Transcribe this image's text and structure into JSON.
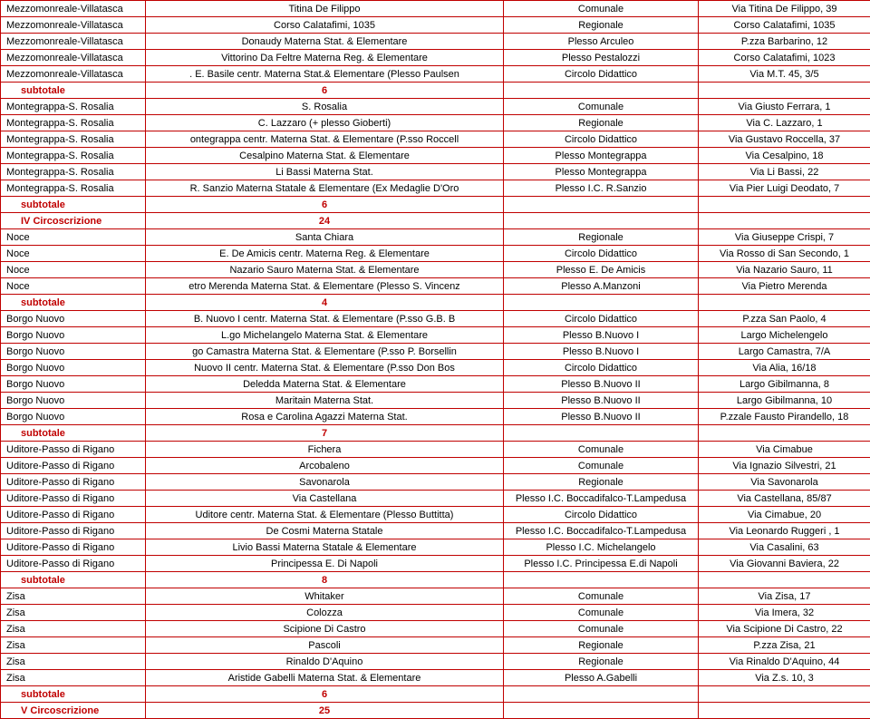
{
  "rows": [
    {
      "type": "data",
      "c1": "Mezzomonreale-Villatasca",
      "c2": "Titina De Filippo",
      "c3": "Comunale",
      "c4": "Via Titina De Filippo, 39"
    },
    {
      "type": "data",
      "c1": "Mezzomonreale-Villatasca",
      "c2": "Corso Calatafimi, 1035",
      "c3": "Regionale",
      "c4": "Corso Calatafimi, 1035"
    },
    {
      "type": "data",
      "c1": "Mezzomonreale-Villatasca",
      "c2": "Donaudy Materna Stat. & Elementare",
      "c3": "Plesso Arculeo",
      "c4": "P.zza Barbarino, 12"
    },
    {
      "type": "data",
      "c1": "Mezzomonreale-Villatasca",
      "c2": "Vittorino Da Feltre Materna Reg. & Elementare",
      "c3": "Plesso Pestalozzi",
      "c4": "Corso Calatafimi, 1023"
    },
    {
      "type": "data",
      "c1": "Mezzomonreale-Villatasca",
      "c2": ". E. Basile centr. Materna Stat.& Elementare (Plesso Paulsen",
      "c3": "Circolo Didattico",
      "c4": "Via M.T. 45, 3/5"
    },
    {
      "type": "sub",
      "c1": "subtotale",
      "c2": "6"
    },
    {
      "type": "data",
      "c1": "Montegrappa-S. Rosalia",
      "c2": "S. Rosalia",
      "c3": "Comunale",
      "c4": "Via Giusto Ferrara, 1"
    },
    {
      "type": "data",
      "c1": "Montegrappa-S. Rosalia",
      "c2": "C. Lazzaro (+ plesso Gioberti)",
      "c3": "Regionale",
      "c4": "Via C. Lazzaro, 1"
    },
    {
      "type": "data",
      "c1": "Montegrappa-S. Rosalia",
      "c2": "ontegrappa centr. Materna Stat. & Elementare (P.sso Roccell",
      "c3": "Circolo Didattico",
      "c4": "Via Gustavo Roccella, 37"
    },
    {
      "type": "data",
      "c1": "Montegrappa-S. Rosalia",
      "c2": "Cesalpino Materna Stat. & Elementare",
      "c3": "Plesso Montegrappa",
      "c4": "Via Cesalpino, 18"
    },
    {
      "type": "data",
      "c1": "Montegrappa-S. Rosalia",
      "c2": "Li Bassi Materna Stat.",
      "c3": "Plesso Montegrappa",
      "c4": "Via Li Bassi, 22"
    },
    {
      "type": "data",
      "c1": "Montegrappa-S. Rosalia",
      "c2": "R. Sanzio Materna Statale & Elementare (Ex Medaglie D'Oro",
      "c3": "Plesso I.C. R.Sanzio",
      "c4": "Via Pier Luigi Deodato, 7"
    },
    {
      "type": "sub",
      "c1": "subtotale",
      "c2": "6"
    },
    {
      "type": "sub",
      "c1": "IV Circoscrizione",
      "c2": "24"
    },
    {
      "type": "data",
      "c1": "Noce",
      "c2": "Santa Chiara",
      "c3": "Regionale",
      "c4": "Via Giuseppe Crispi, 7"
    },
    {
      "type": "data",
      "c1": "Noce",
      "c2": "E. De Amicis centr. Materna Reg. & Elementare",
      "c3": "Circolo Didattico",
      "c4": "Via Rosso di San Secondo, 1"
    },
    {
      "type": "data",
      "c1": "Noce",
      "c2": "Nazario Sauro Materna Stat. & Elementare",
      "c3": "Plesso E. De Amicis",
      "c4": "Via Nazario Sauro, 11"
    },
    {
      "type": "data",
      "c1": "Noce",
      "c2": "etro Merenda Materna Stat. & Elementare (Plesso S. Vincenz",
      "c3": "Plesso A.Manzoni",
      "c4": "Via Pietro Merenda"
    },
    {
      "type": "sub",
      "c1": "subtotale",
      "c2": "4"
    },
    {
      "type": "data",
      "c1": "Borgo Nuovo",
      "c2": "B. Nuovo I centr. Materna Stat. & Elementare (P.sso G.B. B",
      "c3": "Circolo Didattico",
      "c4": "P.zza San Paolo, 4"
    },
    {
      "type": "data",
      "c1": "Borgo Nuovo",
      "c2": "L.go Michelangelo Materna Stat. & Elementare",
      "c3": "Plesso B.Nuovo I",
      "c4": "Largo Michelengelo"
    },
    {
      "type": "data",
      "c1": "Borgo Nuovo",
      "c2": "go Camastra Materna Stat. & Elementare (P.sso P. Borsellin",
      "c3": "Plesso B.Nuovo I",
      "c4": "Largo Camastra, 7/A"
    },
    {
      "type": "data",
      "c1": "Borgo Nuovo",
      "c2": "Nuovo II centr. Materna Stat. & Elementare (P.sso Don Bos",
      "c3": "Circolo Didattico",
      "c4": "Via Alia, 16/18"
    },
    {
      "type": "data",
      "c1": "Borgo Nuovo",
      "c2": "Deledda Materna Stat. & Elementare",
      "c3": "Plesso B.Nuovo II",
      "c4": "Largo Gibilmanna, 8"
    },
    {
      "type": "data",
      "c1": "Borgo Nuovo",
      "c2": "Maritain Materna Stat.",
      "c3": "Plesso B.Nuovo II",
      "c4": "Largo Gibilmanna, 10"
    },
    {
      "type": "data",
      "c1": "Borgo Nuovo",
      "c2": "Rosa e Carolina Agazzi Materna Stat.",
      "c3": "Plesso B.Nuovo II",
      "c4": "P.zzale Fausto Pirandello, 18"
    },
    {
      "type": "sub",
      "c1": "subtotale",
      "c2": "7"
    },
    {
      "type": "data",
      "c1": "Uditore-Passo di Rigano",
      "c2": "Fichera",
      "c3": "Comunale",
      "c4": "Via Cimabue"
    },
    {
      "type": "data",
      "c1": "Uditore-Passo di Rigano",
      "c2": "Arcobaleno",
      "c3": "Comunale",
      "c4": "Via Ignazio Silvestri, 21"
    },
    {
      "type": "data",
      "c1": "Uditore-Passo di Rigano",
      "c2": "Savonarola",
      "c3": "Regionale",
      "c4": "Via Savonarola"
    },
    {
      "type": "data",
      "c1": "Uditore-Passo di Rigano",
      "c2": "Via Castellana",
      "c3": "Plesso I.C. Boccadifalco-T.Lampedusa",
      "c4": "Via Castellana, 85/87"
    },
    {
      "type": "data",
      "c1": "Uditore-Passo di Rigano",
      "c2": "Uditore centr. Materna Stat. & Elementare (Plesso Buttitta)",
      "c3": "Circolo Didattico",
      "c4": "Via Cimabue, 20"
    },
    {
      "type": "data",
      "c1": "Uditore-Passo di Rigano",
      "c2": "De Cosmi Materna Statale",
      "c3": "Plesso I.C. Boccadifalco-T.Lampedusa",
      "c4": "Via Leonardo Ruggeri , 1"
    },
    {
      "type": "data",
      "c1": "Uditore-Passo di Rigano",
      "c2": "Livio Bassi Materna Statale & Elementare",
      "c3": "Plesso I.C. Michelangelo",
      "c4": "Via Casalini, 63"
    },
    {
      "type": "data",
      "c1": "Uditore-Passo di Rigano",
      "c2": "Principessa E. Di Napoli",
      "c3": "Plesso I.C. Principessa E.di Napoli",
      "c4": "Via Giovanni Baviera, 22"
    },
    {
      "type": "sub",
      "c1": "subtotale",
      "c2": "8"
    },
    {
      "type": "data",
      "c1": "Zisa",
      "c2": "Whitaker",
      "c3": "Comunale",
      "c4": "Via Zisa, 17"
    },
    {
      "type": "data",
      "c1": "Zisa",
      "c2": "Colozza",
      "c3": "Comunale",
      "c4": "Via Imera, 32"
    },
    {
      "type": "data",
      "c1": "Zisa",
      "c2": "Scipione Di Castro",
      "c3": "Comunale",
      "c4": "Via Scipione Di Castro, 22"
    },
    {
      "type": "data",
      "c1": "Zisa",
      "c2": "Pascoli",
      "c3": "Regionale",
      "c4": "P.zza Zisa, 21"
    },
    {
      "type": "data",
      "c1": "Zisa",
      "c2": "Rinaldo D'Aquino",
      "c3": "Regionale",
      "c4": "Via Rinaldo D'Aquino, 44"
    },
    {
      "type": "data",
      "c1": "Zisa",
      "c2": "Aristide Gabelli Materna Stat. & Elementare",
      "c3": "Plesso A.Gabelli",
      "c4": "Via Z.s. 10, 3"
    },
    {
      "type": "sub",
      "c1": "subtotale",
      "c2": "6"
    },
    {
      "type": "sub",
      "c1": "V Circoscrizione",
      "c2": "25"
    }
  ]
}
